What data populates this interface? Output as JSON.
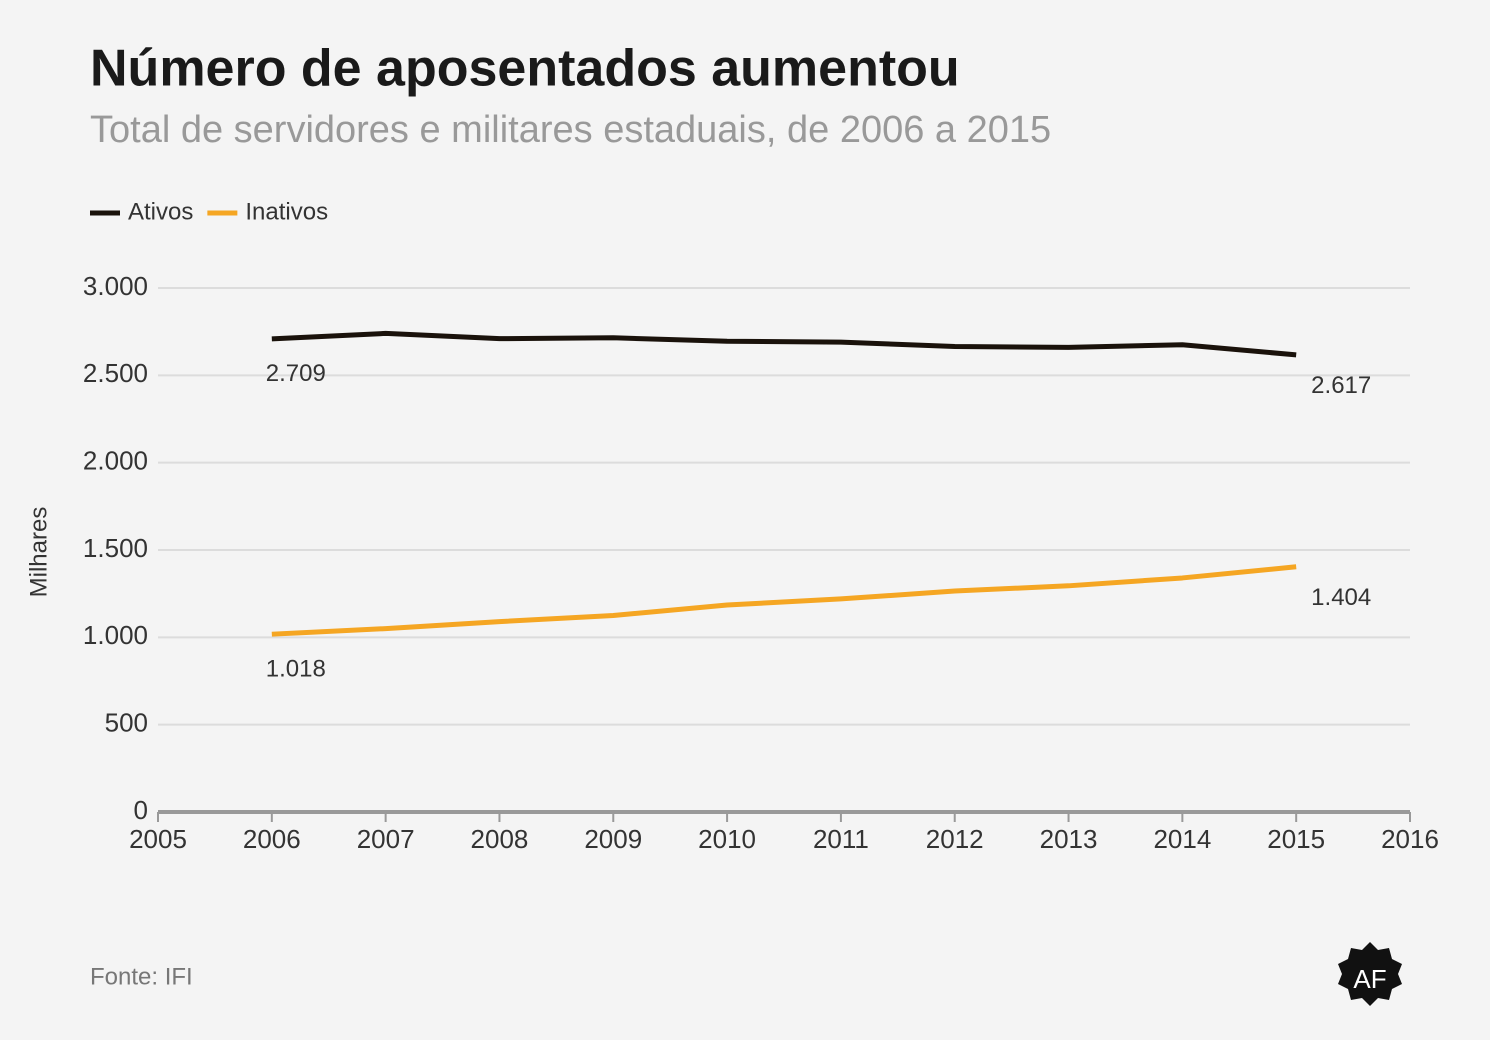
{
  "chart_data": {
    "type": "line",
    "title": "Número de aposentados aumentou",
    "subtitle": "Total de servidores e militares estaduais, de 2006 a 2015",
    "y_label": "Milhares",
    "source": "Fonte: IFI",
    "logo": "AF",
    "x": [
      2006,
      2007,
      2008,
      2009,
      2010,
      2011,
      2012,
      2013,
      2014,
      2015
    ],
    "series": [
      {
        "name": "Ativos",
        "color": "#1a120b",
        "values": [
          2709,
          2740,
          2710,
          2715,
          2695,
          2690,
          2665,
          2660,
          2675,
          2617
        ],
        "value_labels": [
          "2.709",
          null,
          null,
          null,
          null,
          null,
          null,
          null,
          null,
          "2.617"
        ]
      },
      {
        "name": "Inativos",
        "color": "#f5a623",
        "values": [
          1018,
          1050,
          1090,
          1125,
          1185,
          1220,
          1265,
          1295,
          1340,
          1404
        ],
        "value_labels": [
          "1.018",
          null,
          null,
          null,
          null,
          null,
          null,
          null,
          null,
          "1.404"
        ]
      }
    ],
    "xlim": [
      2005,
      2016
    ],
    "xticks": [
      2005,
      2006,
      2007,
      2008,
      2009,
      2010,
      2011,
      2012,
      2013,
      2014,
      2015,
      2016
    ],
    "ylim": [
      0,
      3000
    ],
    "yticks": [
      0,
      500,
      {
        "value": 1000,
        "label": "1.000"
      },
      {
        "value": 1500,
        "label": "1.500"
      },
      {
        "value": 2000,
        "label": "2.000"
      },
      {
        "value": 2500,
        "label": "2.500"
      },
      {
        "value": 3000,
        "label": "3.000"
      }
    ],
    "grid": true,
    "legend": "top-left"
  }
}
